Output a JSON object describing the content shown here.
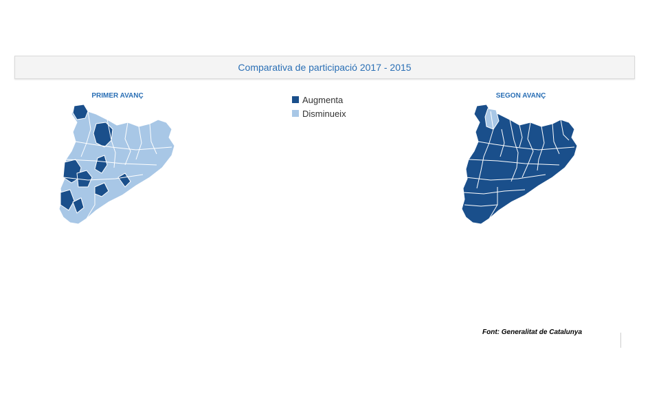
{
  "header": {
    "title": "Comparativa de participació 2017 - 2015"
  },
  "maps": [
    {
      "title": "PRIMER AVANÇ"
    },
    {
      "title": "SEGON AVANÇ"
    }
  ],
  "legend": {
    "items": [
      {
        "label": "Augmenta",
        "color": "#1a4f8b"
      },
      {
        "label": "Disminueix",
        "color": "#a8c7e6"
      }
    ]
  },
  "source": "Font: Generalitat de Catalunya",
  "colors": {
    "increase": "#1a4f8b",
    "decrease": "#a8c7e6",
    "title": "#2a6fb5"
  }
}
